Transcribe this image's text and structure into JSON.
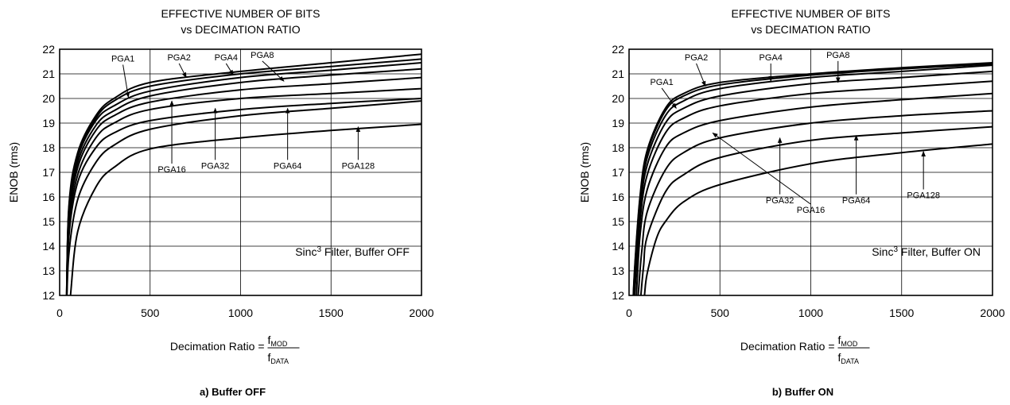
{
  "chart_data": [
    {
      "type": "line",
      "title_line1": "EFFECTIVE NUMBER OF BITS",
      "title_line2": "vs DECIMATION RATIO",
      "ylabel": "ENOB (rms)",
      "xlabel_prefix": "Decimation Ratio = ",
      "xlabel_num": "f",
      "xlabel_num_sub": "MOD",
      "xlabel_den": "f",
      "xlabel_den_sub": "DATA",
      "xlim": [
        0,
        2000
      ],
      "ylim": [
        12,
        22
      ],
      "xticks": [
        "0",
        "500",
        "1000",
        "1500",
        "2000"
      ],
      "yticks": [
        "12",
        "13",
        "14",
        "15",
        "16",
        "17",
        "18",
        "19",
        "20",
        "21",
        "22"
      ],
      "grid": true,
      "annotation_main": "Sinc",
      "annotation_sup": "3",
      "annotation_rest": " Filter, Buffer OFF",
      "caption": "a) Buffer OFF",
      "series": [
        {
          "name": "PGA1",
          "x": [
            50,
            100,
            200,
            300,
            500,
            1000,
            1500,
            2000
          ],
          "y": [
            15.5,
            17.8,
            19.3,
            20.0,
            20.65,
            21.1,
            21.45,
            21.8
          ]
        },
        {
          "name": "PGA2",
          "x": [
            50,
            100,
            200,
            300,
            500,
            1000,
            1500,
            2000
          ],
          "y": [
            15.4,
            17.7,
            19.2,
            19.9,
            20.5,
            21.0,
            21.3,
            21.6
          ]
        },
        {
          "name": "PGA4",
          "x": [
            50,
            100,
            200,
            300,
            500,
            1000,
            1500,
            2000
          ],
          "y": [
            15.3,
            17.6,
            19.1,
            19.7,
            20.3,
            20.85,
            21.15,
            21.45
          ]
        },
        {
          "name": "PGA8",
          "x": [
            50,
            100,
            200,
            300,
            500,
            1000,
            1500,
            2000
          ],
          "y": [
            15.1,
            17.4,
            18.9,
            19.5,
            20.1,
            20.65,
            20.95,
            21.2
          ]
        },
        {
          "name": "",
          "x": [
            50,
            100,
            200,
            300,
            500,
            1000,
            1500,
            2000
          ],
          "y": [
            14.9,
            17.2,
            18.7,
            19.3,
            19.85,
            20.35,
            20.6,
            20.85
          ]
        },
        {
          "name": "PGA16",
          "x": [
            50,
            100,
            200,
            300,
            500,
            1000,
            1500,
            2000
          ],
          "y": [
            14.6,
            16.9,
            18.4,
            19.0,
            19.55,
            20.0,
            20.2,
            20.4
          ]
        },
        {
          "name": "PGA32",
          "x": [
            50,
            100,
            200,
            300,
            500,
            1000,
            1500,
            2000
          ],
          "y": [
            14.3,
            16.6,
            18.0,
            18.6,
            19.1,
            19.55,
            19.8,
            20.0
          ]
        },
        {
          "name": "PGA64",
          "x": [
            50,
            100,
            200,
            300,
            500,
            1000,
            1500,
            2000
          ],
          "y": [
            13.6,
            15.9,
            17.4,
            18.1,
            18.75,
            19.3,
            19.6,
            19.9
          ]
        },
        {
          "name": "PGA128",
          "x": [
            60,
            100,
            200,
            300,
            500,
            1000,
            1500,
            2000
          ],
          "y": [
            12.0,
            14.6,
            16.4,
            17.2,
            17.95,
            18.4,
            18.7,
            18.95
          ]
        }
      ],
      "labels": [
        {
          "text": "PGA1",
          "x": 350,
          "y": 21.5,
          "ax": 380,
          "ay": 20.05
        },
        {
          "text": "PGA2",
          "x": 660,
          "y": 21.55,
          "ax": 700,
          "ay": 20.85
        },
        {
          "text": "PGA4",
          "x": 920,
          "y": 21.55,
          "ax": 960,
          "ay": 20.95
        },
        {
          "text": "PGA8",
          "x": 1120,
          "y": 21.65,
          "ax": 1240,
          "ay": 20.7
        },
        {
          "text": "PGA16",
          "x": 620,
          "y": 17.0,
          "ax": 620,
          "ay": 19.9
        },
        {
          "text": "PGA32",
          "x": 860,
          "y": 17.15,
          "ax": 860,
          "ay": 19.6
        },
        {
          "text": "PGA64",
          "x": 1260,
          "y": 17.15,
          "ax": 1260,
          "ay": 19.6
        },
        {
          "text": "PGA128",
          "x": 1650,
          "y": 17.15,
          "ax": 1650,
          "ay": 18.85
        }
      ]
    },
    {
      "type": "line",
      "title_line1": "EFFECTIVE NUMBER OF BITS",
      "title_line2": "vs DECIMATION RATIO",
      "ylabel": "ENOB (rms)",
      "xlabel_prefix": "Decimation Ratio = ",
      "xlabel_num": "f",
      "xlabel_num_sub": "MOD",
      "xlabel_den": "f",
      "xlabel_den_sub": "DATA",
      "xlim": [
        0,
        2000
      ],
      "ylim": [
        12,
        22
      ],
      "xticks": [
        "0",
        "500",
        "1000",
        "1500",
        "2000"
      ],
      "yticks": [
        "12",
        "13",
        "14",
        "15",
        "16",
        "17",
        "18",
        "19",
        "20",
        "21",
        "22"
      ],
      "grid": true,
      "annotation_main": "Sinc",
      "annotation_sup": "3",
      "annotation_rest": " Filter, Buffer ON",
      "caption": "b) Buffer ON",
      "series": [
        {
          "name": "PGA1",
          "x": [
            30,
            60,
            100,
            200,
            300,
            500,
            1000,
            1500,
            2000
          ],
          "y": [
            13.0,
            16.0,
            17.9,
            19.6,
            20.2,
            20.65,
            21.0,
            21.25,
            21.45
          ]
        },
        {
          "name": "PGA2",
          "x": [
            30,
            60,
            100,
            200,
            300,
            500,
            1000,
            1500,
            2000
          ],
          "y": [
            12.9,
            15.9,
            17.8,
            19.5,
            20.1,
            20.55,
            20.95,
            21.2,
            21.4
          ]
        },
        {
          "name": "PGA4",
          "x": [
            30,
            60,
            100,
            200,
            300,
            500,
            1000,
            1500,
            2000
          ],
          "y": [
            12.7,
            15.7,
            17.6,
            19.3,
            19.9,
            20.4,
            20.85,
            21.1,
            21.35
          ]
        },
        {
          "name": "PGA8",
          "x": [
            30,
            60,
            100,
            200,
            300,
            500,
            1000,
            1500,
            2000
          ],
          "y": [
            12.4,
            15.4,
            17.3,
            19.0,
            19.6,
            20.1,
            20.6,
            20.85,
            21.1
          ]
        },
        {
          "name": "",
          "x": [
            30,
            60,
            100,
            200,
            300,
            500,
            1000,
            1500,
            2000
          ],
          "y": [
            12.0,
            15.0,
            16.9,
            18.6,
            19.2,
            19.7,
            20.2,
            20.45,
            20.7
          ]
        },
        {
          "name": "PGA16",
          "x": [
            40,
            60,
            100,
            200,
            300,
            500,
            1000,
            1500,
            2000
          ],
          "y": [
            12.0,
            14.4,
            16.3,
            18.0,
            18.6,
            19.1,
            19.65,
            19.95,
            20.2
          ]
        },
        {
          "name": "PGA32",
          "x": [
            50,
            70,
            100,
            200,
            300,
            500,
            1000,
            1500,
            2000
          ],
          "y": [
            12.0,
            13.8,
            15.4,
            17.1,
            17.8,
            18.4,
            19.0,
            19.3,
            19.5
          ]
        },
        {
          "name": "PGA64",
          "x": [
            65,
            80,
            100,
            200,
            300,
            500,
            1000,
            1500,
            2000
          ],
          "y": [
            12.0,
            13.2,
            14.4,
            16.2,
            16.9,
            17.6,
            18.3,
            18.6,
            18.85
          ]
        },
        {
          "name": "PGA128",
          "x": [
            85,
            100,
            150,
            200,
            300,
            500,
            1000,
            1500,
            2000
          ],
          "y": [
            12.0,
            12.9,
            14.3,
            15.0,
            15.8,
            16.5,
            17.35,
            17.8,
            18.15
          ]
        }
      ],
      "labels": [
        {
          "text": "PGA1",
          "x": 180,
          "y": 20.55,
          "ax": 260,
          "ay": 19.6
        },
        {
          "text": "PGA2",
          "x": 370,
          "y": 21.55,
          "ax": 420,
          "ay": 20.5
        },
        {
          "text": "PGA4",
          "x": 780,
          "y": 21.55,
          "ax": 780,
          "ay": 20.7
        },
        {
          "text": "PGA8",
          "x": 1150,
          "y": 21.65,
          "ax": 1150,
          "ay": 20.65
        },
        {
          "text": "PGA16",
          "x": 1000,
          "y": 15.35,
          "ax": 460,
          "ay": 18.6
        },
        {
          "text": "PGA32",
          "x": 830,
          "y": 15.75,
          "ax": 830,
          "ay": 18.4
        },
        {
          "text": "PGA64",
          "x": 1250,
          "y": 15.75,
          "ax": 1250,
          "ay": 18.5
        },
        {
          "text": "PGA128",
          "x": 1620,
          "y": 15.95,
          "ax": 1620,
          "ay": 17.85
        }
      ]
    }
  ]
}
